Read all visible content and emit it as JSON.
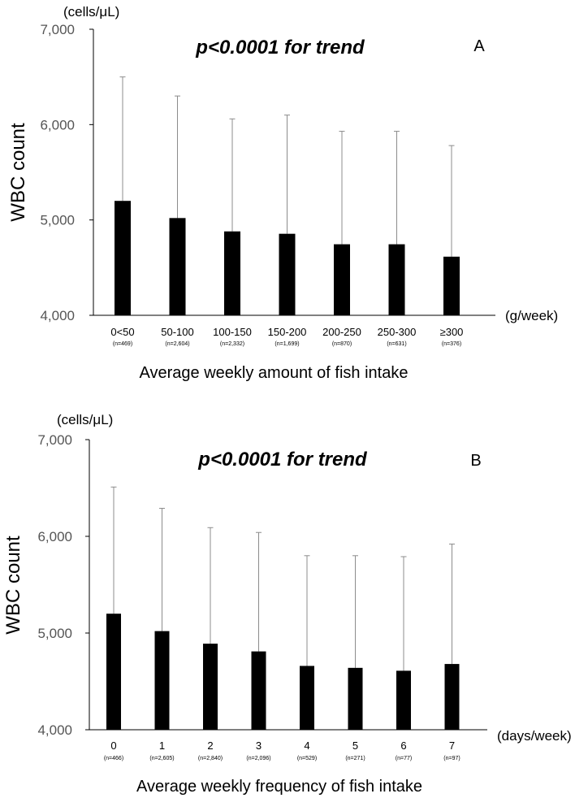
{
  "chart_data": [
    {
      "type": "bar",
      "panel": "A",
      "title": "p<0.0001 for trend",
      "ylabel": "WBC count",
      "yunit": "(cells/μL)",
      "xlabel": "Average weekly amount of fish intake",
      "xunit": "(g/week)",
      "ylim": [
        4000,
        7000
      ],
      "yticks": [
        "4,000",
        "5,000",
        "6,000",
        "7,000"
      ],
      "categories": [
        "0<50",
        "50-100",
        "100-150",
        "150-200",
        "200-250",
        "250-300",
        "≥300"
      ],
      "n_labels": [
        "(n=469)",
        "(n=2,604)",
        "(n=2,332)",
        "(n=1,699)",
        "(n=870)",
        "(n=631)",
        "(n=376)"
      ],
      "values": [
        5200,
        5020,
        4880,
        4855,
        4745,
        4745,
        4615
      ],
      "error_upper": [
        6500,
        6300,
        6060,
        6100,
        5930,
        5930,
        5780
      ]
    },
    {
      "type": "bar",
      "panel": "B",
      "title": "p<0.0001 for trend",
      "ylabel": "WBC count",
      "yunit": "(cells/μL)",
      "xlabel": "Average weekly frequency of fish intake",
      "xunit": "(days/week)",
      "ylim": [
        4000,
        7000
      ],
      "yticks": [
        "4,000",
        "5,000",
        "6,000",
        "7,000"
      ],
      "categories": [
        "0",
        "1",
        "2",
        "3",
        "4",
        "5",
        "6",
        "7"
      ],
      "n_labels": [
        "(n=466)",
        "(n=2,605)",
        "(n=2,840)",
        "(n=2,096)",
        "(n=529)",
        "(n=271)",
        "(n=77)",
        "(n=97)"
      ],
      "values": [
        5200,
        5020,
        4890,
        4810,
        4660,
        4640,
        4610,
        4680
      ],
      "error_upper": [
        6510,
        6290,
        6090,
        6040,
        5800,
        5800,
        5790,
        5920
      ]
    }
  ]
}
